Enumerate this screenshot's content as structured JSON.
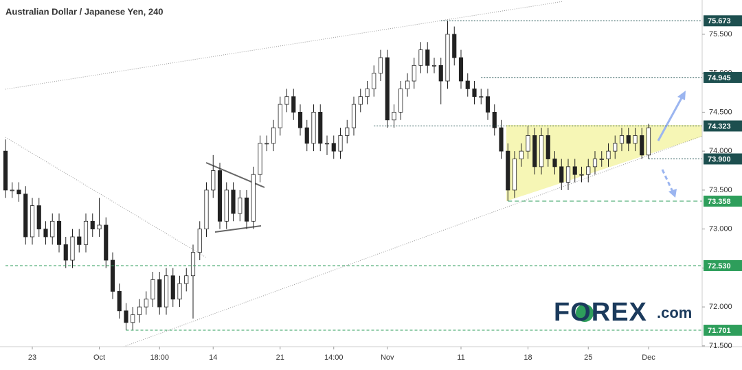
{
  "chart_data": {
    "type": "candlestick",
    "title": "Australian Dollar / Japanese Yen, 240",
    "logo_main": "FOREX",
    "logo_suffix": ".com",
    "xlim": [
      0,
      104
    ],
    "xticks": [
      {
        "value": 4,
        "label": "23"
      },
      {
        "value": 14,
        "label": "Oct"
      },
      {
        "value": 23,
        "label": "18:00"
      },
      {
        "value": 31,
        "label": "14"
      },
      {
        "value": 41,
        "label": "21"
      },
      {
        "value": 49,
        "label": "14:00"
      },
      {
        "value": 57,
        "label": "Nov"
      },
      {
        "value": 68,
        "label": "11"
      },
      {
        "value": 78,
        "label": "18"
      },
      {
        "value": 87,
        "label": "25"
      },
      {
        "value": 96,
        "label": "Dec"
      }
    ],
    "ylim": [
      71.49,
      75.94
    ],
    "yticks": [
      {
        "value": 71.5,
        "label": "71.500"
      },
      {
        "value": 72,
        "label": "72.000"
      },
      {
        "value": 72.5,
        "label": "72.500"
      },
      {
        "value": 73,
        "label": "73.000"
      },
      {
        "value": 73.5,
        "label": "73.500"
      },
      {
        "value": 74,
        "label": "74.000"
      },
      {
        "value": 74.5,
        "label": "74.500"
      },
      {
        "value": 75,
        "label": "75.000"
      },
      {
        "value": 75.5,
        "label": "75.500"
      }
    ],
    "up_color": "#ffffff",
    "down_color": "#222222",
    "open": [
      74.0,
      73.5,
      73.5,
      73.45,
      72.9,
      73.3,
      73.0,
      72.9,
      73.1,
      72.8,
      72.6,
      72.9,
      72.8,
      73.1,
      73.0,
      73.05,
      72.6,
      72.2,
      71.95,
      71.8,
      71.9,
      72.0,
      72.1,
      72.35,
      72.0,
      72.4,
      72.1,
      72.3,
      72.4,
      72.7,
      73.0,
      73.5,
      73.75,
      73.1,
      73.5,
      73.2,
      73.4,
      73.1,
      73.7,
      74.1,
      74.1,
      74.3,
      74.6,
      74.7,
      74.5,
      74.3,
      74.1,
      74.5,
      74.1,
      74.1,
      74.0,
      74.2,
      74.3,
      74.6,
      74.7,
      74.8,
      75.0,
      75.2,
      74.4,
      74.5,
      74.8,
      74.9,
      75.1,
      75.3,
      75.1,
      75.1,
      74.9,
      75.5,
      75.2,
      74.9,
      74.8,
      74.7,
      74.7,
      74.5,
      74.3,
      74.0,
      73.5,
      73.9,
      74.0,
      74.2,
      73.8,
      74.2,
      73.9,
      73.8,
      73.6,
      73.8,
      73.7,
      73.7,
      73.8,
      73.9,
      73.9,
      74.0,
      74.1,
      74.2,
      74.1,
      74.2,
      73.95
    ],
    "high": [
      74.15,
      73.6,
      73.6,
      73.55,
      73.4,
      73.4,
      73.1,
      73.2,
      73.2,
      72.9,
      73.0,
      73.0,
      73.2,
      73.2,
      73.4,
      73.15,
      72.7,
      72.3,
      72.05,
      72.0,
      72.1,
      72.2,
      72.45,
      72.45,
      72.5,
      72.5,
      72.4,
      72.5,
      72.8,
      73.1,
      73.6,
      73.95,
      73.85,
      73.6,
      73.6,
      73.5,
      73.5,
      73.8,
      74.2,
      74.2,
      74.4,
      74.7,
      74.8,
      74.8,
      74.6,
      74.4,
      74.6,
      74.6,
      74.2,
      74.2,
      74.3,
      74.4,
      74.7,
      74.8,
      74.9,
      75.1,
      75.3,
      75.3,
      74.6,
      74.9,
      75.0,
      75.2,
      75.4,
      75.4,
      75.2,
      75.2,
      75.673,
      75.6,
      75.3,
      75.0,
      74.9,
      74.8,
      74.8,
      74.6,
      74.4,
      74.1,
      74.0,
      74.1,
      74.323,
      74.3,
      74.3,
      74.3,
      74.0,
      73.9,
      73.9,
      73.9,
      73.8,
      73.9,
      74.0,
      74.0,
      74.1,
      74.2,
      74.3,
      74.3,
      74.3,
      74.3,
      74.35
    ],
    "low": [
      73.4,
      73.4,
      73.35,
      72.8,
      72.8,
      72.9,
      72.8,
      72.8,
      72.7,
      72.5,
      72.5,
      72.7,
      72.7,
      72.9,
      72.9,
      72.5,
      72.1,
      71.85,
      71.7,
      71.7,
      71.8,
      71.9,
      72.0,
      71.9,
      71.9,
      72.0,
      72.0,
      72.2,
      71.85,
      72.6,
      72.9,
      73.4,
      73.0,
      73.0,
      73.1,
      73.1,
      73.0,
      73.0,
      73.6,
      74.0,
      74.0,
      74.2,
      74.5,
      74.4,
      74.2,
      74.0,
      74.0,
      74.0,
      73.95,
      73.9,
      73.9,
      74.1,
      74.2,
      74.5,
      74.6,
      74.7,
      74.9,
      74.3,
      74.3,
      74.4,
      74.7,
      74.8,
      75.0,
      75.0,
      75.0,
      74.6,
      74.8,
      75.1,
      74.8,
      74.7,
      74.6,
      74.6,
      74.4,
      74.2,
      73.9,
      73.358,
      73.4,
      73.8,
      73.9,
      73.7,
      73.7,
      73.8,
      73.7,
      73.5,
      73.5,
      73.6,
      73.6,
      73.6,
      73.7,
      73.8,
      73.8,
      73.9,
      74.0,
      74.0,
      74.0,
      73.9,
      73.9
    ],
    "close": [
      73.5,
      73.5,
      73.45,
      72.9,
      73.3,
      73.0,
      72.9,
      73.1,
      72.8,
      72.6,
      72.9,
      72.8,
      73.1,
      73.0,
      73.05,
      72.6,
      72.2,
      71.95,
      71.8,
      71.9,
      72.0,
      72.1,
      72.35,
      72.0,
      72.4,
      72.1,
      72.3,
      72.4,
      72.7,
      73.0,
      73.5,
      73.75,
      73.1,
      73.5,
      73.2,
      73.4,
      73.1,
      73.7,
      74.1,
      74.1,
      74.3,
      74.6,
      74.7,
      74.5,
      74.3,
      74.1,
      74.5,
      74.1,
      74.1,
      74.0,
      74.2,
      74.3,
      74.6,
      74.7,
      74.8,
      75.0,
      75.2,
      74.4,
      74.5,
      74.8,
      74.9,
      75.1,
      75.3,
      75.1,
      75.1,
      74.9,
      75.5,
      75.2,
      74.9,
      74.8,
      74.7,
      74.7,
      74.5,
      74.3,
      74.0,
      73.5,
      73.9,
      74.0,
      74.2,
      73.8,
      74.2,
      73.9,
      73.8,
      73.6,
      73.8,
      73.7,
      73.7,
      73.8,
      73.9,
      73.9,
      74.0,
      74.1,
      74.2,
      74.1,
      74.2,
      73.95,
      74.3
    ],
    "levels": [
      {
        "value": 75.673,
        "from": 65,
        "color": "#1d4f4f",
        "dash": "2,2"
      },
      {
        "value": 74.945,
        "from": 71,
        "color": "#1d4f4f",
        "dash": "2,2"
      },
      {
        "value": 74.323,
        "from": 55,
        "color": "#1d4f4f",
        "dash": "2,2"
      },
      {
        "value": 73.9,
        "label": "73.900",
        "from": 96,
        "color": "#1d4f4f",
        "dash": "2,2"
      },
      {
        "value": 73.358,
        "from": 75,
        "color": "#2e9e5b",
        "dash": "6,4"
      },
      {
        "value": 72.53,
        "label": "72.530",
        "from": 0,
        "color": "#2e9e5b",
        "dash": "4,3"
      },
      {
        "value": 71.701,
        "from": 18,
        "color": "#2e9e5b",
        "dash": "4,3"
      }
    ]
  }
}
